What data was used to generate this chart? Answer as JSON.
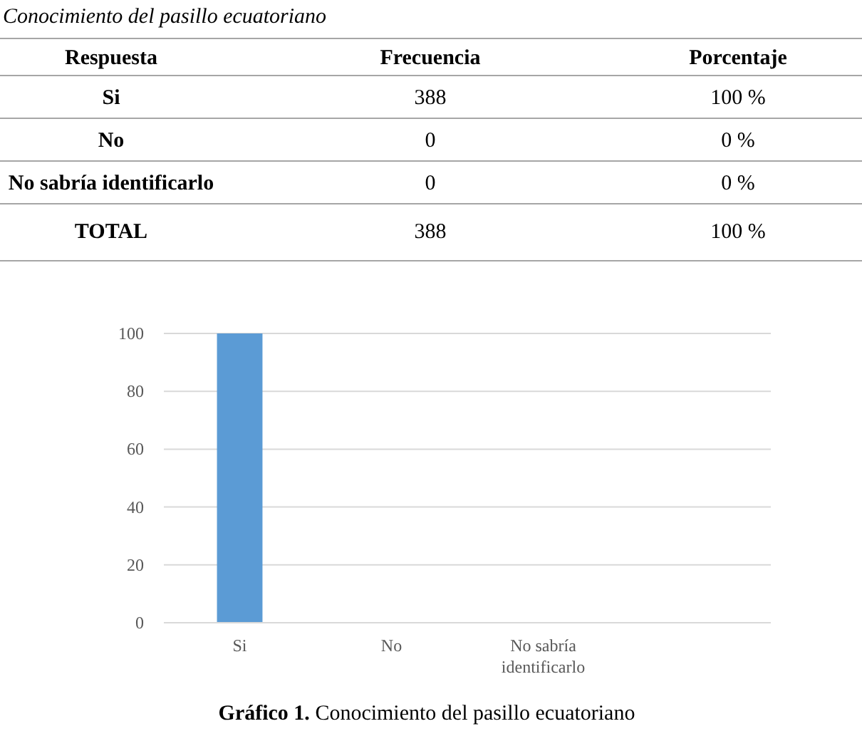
{
  "chart_data": {
    "type": "bar",
    "title": "Gráfico 1. Conocimiento del pasillo ecuatoriano",
    "categories": [
      "Si",
      "No",
      "No sabría identificarlo",
      null
    ],
    "values": [
      100,
      0,
      0,
      null
    ],
    "color": "#5b9bd5",
    "ylim": [
      0,
      100
    ],
    "yticks": [
      0,
      20,
      40,
      60,
      80,
      100
    ],
    "grid": "y",
    "annotations": [
      "Conocimiento del pasillo ecuatoriano",
      "Respuesta",
      "Frecuencia",
      "Porcentaje",
      "388",
      "100 %",
      "0",
      "0 %",
      "0",
      "0 %",
      "TOTAL",
      "388",
      "100 %"
    ]
  }
}
